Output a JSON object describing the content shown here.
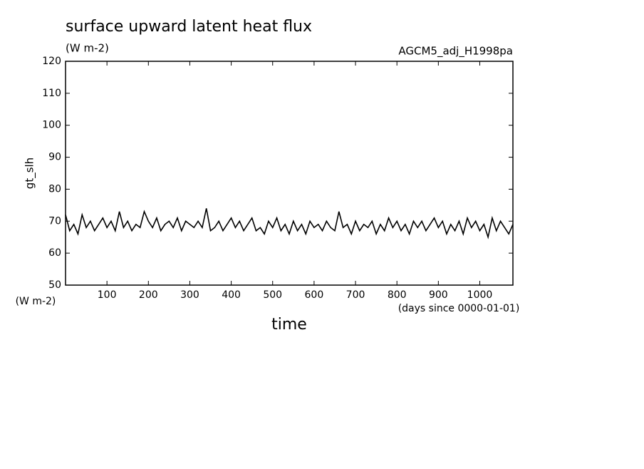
{
  "chart_data": {
    "type": "line",
    "title": "surface upward latent heat flux",
    "subtitle": "(W m-2)",
    "run_label": "AGCM5_adj_H1998pa",
    "y_label": "gt_slh",
    "y_unit": "(W m-2)",
    "x_label": "time",
    "x_unit": "(days since 0000-01-01)",
    "xlim": [
      0,
      1080
    ],
    "ylim": [
      50,
      120
    ],
    "xticks": [
      100,
      200,
      300,
      400,
      500,
      600,
      700,
      800,
      900,
      1000
    ],
    "yticks": [
      50,
      60,
      70,
      80,
      90,
      100,
      110,
      120
    ],
    "grid": false,
    "x": [
      0,
      10,
      20,
      30,
      40,
      50,
      60,
      70,
      80,
      90,
      100,
      110,
      120,
      130,
      140,
      150,
      160,
      170,
      180,
      190,
      200,
      210,
      220,
      230,
      240,
      250,
      260,
      270,
      280,
      290,
      300,
      310,
      320,
      330,
      340,
      350,
      360,
      370,
      380,
      390,
      400,
      410,
      420,
      430,
      440,
      450,
      460,
      470,
      480,
      490,
      500,
      510,
      520,
      530,
      540,
      550,
      560,
      570,
      580,
      590,
      600,
      610,
      620,
      630,
      640,
      650,
      660,
      670,
      680,
      690,
      700,
      710,
      720,
      730,
      740,
      750,
      760,
      770,
      780,
      790,
      800,
      810,
      820,
      830,
      840,
      850,
      860,
      870,
      880,
      890,
      900,
      910,
      920,
      930,
      940,
      950,
      960,
      970,
      980,
      990,
      1000,
      1010,
      1020,
      1030,
      1040,
      1050,
      1060,
      1070,
      1080
    ],
    "series": [
      {
        "name": "gt_slh",
        "color": "#000000",
        "values": [
          72,
          67,
          69,
          66,
          72,
          68,
          70,
          67,
          69,
          71,
          68,
          70,
          67,
          73,
          68,
          70,
          67,
          69,
          68,
          73,
          70,
          68,
          71,
          67,
          69,
          70,
          68,
          71,
          67,
          70,
          69,
          68,
          70,
          68,
          74,
          67,
          68,
          70,
          67,
          69,
          71,
          68,
          70,
          67,
          69,
          71,
          67,
          68,
          66,
          70,
          68,
          71,
          67,
          69,
          66,
          70,
          67,
          69,
          66,
          70,
          68,
          69,
          67,
          70,
          68,
          67,
          73,
          68,
          69,
          66,
          70,
          67,
          69,
          68,
          70,
          66,
          69,
          67,
          71,
          68,
          70,
          67,
          69,
          66,
          70,
          68,
          70,
          67,
          69,
          71,
          68,
          70,
          66,
          69,
          67,
          70,
          66,
          71,
          68,
          70,
          67,
          69,
          65,
          71,
          67,
          70,
          68,
          66,
          69
        ]
      }
    ]
  }
}
